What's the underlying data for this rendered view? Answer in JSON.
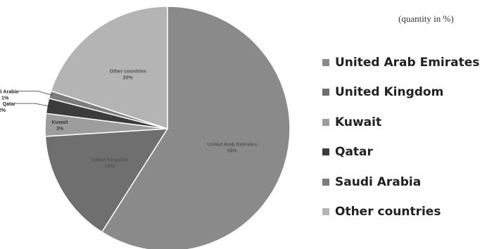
{
  "unit_note": "(quantity in %)",
  "chart_data": {
    "type": "pie",
    "title": "",
    "legend_position": "right",
    "slices": [
      {
        "label": "United Arab Emirates",
        "value": 59,
        "value_label": "59%",
        "color": "#8a8a8a",
        "label_placement": "inside"
      },
      {
        "label": "United Kingdom",
        "value": 15,
        "value_label": "15%",
        "color": "#6f6f6f",
        "label_placement": "inside"
      },
      {
        "label": "Kuwait",
        "value": 3,
        "value_label": "3%",
        "color": "#9d9d9d",
        "label_placement": "inside"
      },
      {
        "label": "Qatar",
        "value": 2,
        "value_label": "2%",
        "color": "#3c3c3c",
        "label_placement": "outside"
      },
      {
        "label": "Saudi Arabia",
        "value": 1,
        "value_label": "1%",
        "color": "#7c7c7c",
        "label_placement": "outside"
      },
      {
        "label": "Other countries",
        "value": 20,
        "value_label": "20%",
        "color": "#b4b4b4",
        "label_placement": "inside"
      }
    ]
  }
}
